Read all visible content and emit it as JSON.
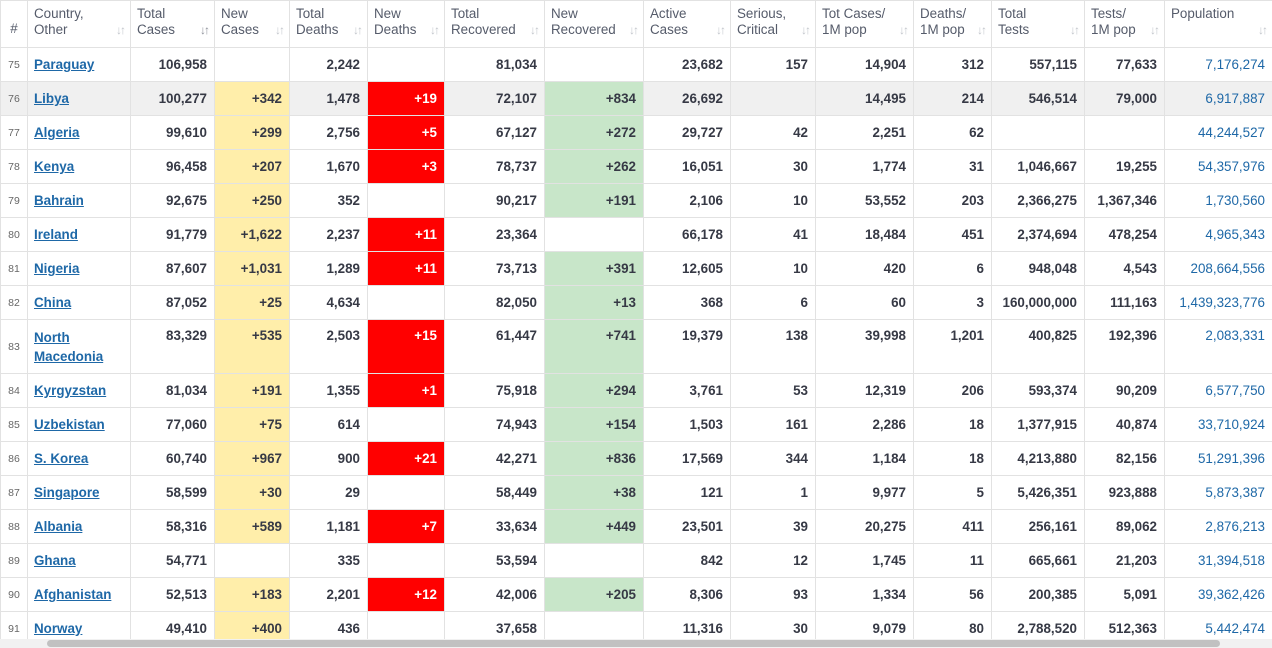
{
  "headers": [
    "#",
    "Country,\nOther",
    "Total\nCases",
    "New\nCases",
    "Total\nDeaths",
    "New\nDeaths",
    "Total\nRecovered",
    "New\nRecovered",
    "Active\nCases",
    "Serious,\nCritical",
    "Tot Cases/\n1M pop",
    "Deaths/\n1M pop",
    "Total\nTests",
    "Tests/\n1M pop",
    "Population"
  ],
  "rows": [
    {
      "n": "75",
      "country": "Paraguay",
      "total_cases": "106,958",
      "new_cases": "",
      "total_deaths": "2,242",
      "new_deaths": "",
      "total_recovered": "81,034",
      "new_recovered": "",
      "active": "23,682",
      "critical": "157",
      "cases_1m": "14,904",
      "deaths_1m": "312",
      "tests": "557,115",
      "tests_1m": "77,633",
      "population": "7,176,274"
    },
    {
      "n": "76",
      "country": "Libya",
      "total_cases": "100,277",
      "new_cases": "+342",
      "total_deaths": "1,478",
      "new_deaths": "+19",
      "total_recovered": "72,107",
      "new_recovered": "+834",
      "active": "26,692",
      "critical": "",
      "cases_1m": "14,495",
      "deaths_1m": "214",
      "tests": "546,514",
      "tests_1m": "79,000",
      "population": "6,917,887"
    },
    {
      "n": "77",
      "country": "Algeria",
      "total_cases": "99,610",
      "new_cases": "+299",
      "total_deaths": "2,756",
      "new_deaths": "+5",
      "total_recovered": "67,127",
      "new_recovered": "+272",
      "active": "29,727",
      "critical": "42",
      "cases_1m": "2,251",
      "deaths_1m": "62",
      "tests": "",
      "tests_1m": "",
      "population": "44,244,527"
    },
    {
      "n": "78",
      "country": "Kenya",
      "total_cases": "96,458",
      "new_cases": "+207",
      "total_deaths": "1,670",
      "new_deaths": "+3",
      "total_recovered": "78,737",
      "new_recovered": "+262",
      "active": "16,051",
      "critical": "30",
      "cases_1m": "1,774",
      "deaths_1m": "31",
      "tests": "1,046,667",
      "tests_1m": "19,255",
      "population": "54,357,976"
    },
    {
      "n": "79",
      "country": "Bahrain",
      "total_cases": "92,675",
      "new_cases": "+250",
      "total_deaths": "352",
      "new_deaths": "",
      "total_recovered": "90,217",
      "new_recovered": "+191",
      "active": "2,106",
      "critical": "10",
      "cases_1m": "53,552",
      "deaths_1m": "203",
      "tests": "2,366,275",
      "tests_1m": "1,367,346",
      "population": "1,730,560"
    },
    {
      "n": "80",
      "country": "Ireland",
      "total_cases": "91,779",
      "new_cases": "+1,622",
      "total_deaths": "2,237",
      "new_deaths": "+11",
      "total_recovered": "23,364",
      "new_recovered": "",
      "active": "66,178",
      "critical": "41",
      "cases_1m": "18,484",
      "deaths_1m": "451",
      "tests": "2,374,694",
      "tests_1m": "478,254",
      "population": "4,965,343"
    },
    {
      "n": "81",
      "country": "Nigeria",
      "total_cases": "87,607",
      "new_cases": "+1,031",
      "total_deaths": "1,289",
      "new_deaths": "+11",
      "total_recovered": "73,713",
      "new_recovered": "+391",
      "active": "12,605",
      "critical": "10",
      "cases_1m": "420",
      "deaths_1m": "6",
      "tests": "948,048",
      "tests_1m": "4,543",
      "population": "208,664,556"
    },
    {
      "n": "82",
      "country": "China",
      "total_cases": "87,052",
      "new_cases": "+25",
      "total_deaths": "4,634",
      "new_deaths": "",
      "total_recovered": "82,050",
      "new_recovered": "+13",
      "active": "368",
      "critical": "6",
      "cases_1m": "60",
      "deaths_1m": "3",
      "tests": "160,000,000",
      "tests_1m": "111,163",
      "population": "1,439,323,776"
    },
    {
      "n": "83",
      "country": "North Macedonia",
      "total_cases": "83,329",
      "new_cases": "+535",
      "total_deaths": "2,503",
      "new_deaths": "+15",
      "total_recovered": "61,447",
      "new_recovered": "+741",
      "active": "19,379",
      "critical": "138",
      "cases_1m": "39,998",
      "deaths_1m": "1,201",
      "tests": "400,825",
      "tests_1m": "192,396",
      "population": "2,083,331"
    },
    {
      "n": "84",
      "country": "Kyrgyzstan",
      "total_cases": "81,034",
      "new_cases": "+191",
      "total_deaths": "1,355",
      "new_deaths": "+1",
      "total_recovered": "75,918",
      "new_recovered": "+294",
      "active": "3,761",
      "critical": "53",
      "cases_1m": "12,319",
      "deaths_1m": "206",
      "tests": "593,374",
      "tests_1m": "90,209",
      "population": "6,577,750"
    },
    {
      "n": "85",
      "country": "Uzbekistan",
      "total_cases": "77,060",
      "new_cases": "+75",
      "total_deaths": "614",
      "new_deaths": "",
      "total_recovered": "74,943",
      "new_recovered": "+154",
      "active": "1,503",
      "critical": "161",
      "cases_1m": "2,286",
      "deaths_1m": "18",
      "tests": "1,377,915",
      "tests_1m": "40,874",
      "population": "33,710,924"
    },
    {
      "n": "86",
      "country": "S. Korea",
      "total_cases": "60,740",
      "new_cases": "+967",
      "total_deaths": "900",
      "new_deaths": "+21",
      "total_recovered": "42,271",
      "new_recovered": "+836",
      "active": "17,569",
      "critical": "344",
      "cases_1m": "1,184",
      "deaths_1m": "18",
      "tests": "4,213,880",
      "tests_1m": "82,156",
      "population": "51,291,396"
    },
    {
      "n": "87",
      "country": "Singapore",
      "total_cases": "58,599",
      "new_cases": "+30",
      "total_deaths": "29",
      "new_deaths": "",
      "total_recovered": "58,449",
      "new_recovered": "+38",
      "active": "121",
      "critical": "1",
      "cases_1m": "9,977",
      "deaths_1m": "5",
      "tests": "5,426,351",
      "tests_1m": "923,888",
      "population": "5,873,387"
    },
    {
      "n": "88",
      "country": "Albania",
      "total_cases": "58,316",
      "new_cases": "+589",
      "total_deaths": "1,181",
      "new_deaths": "+7",
      "total_recovered": "33,634",
      "new_recovered": "+449",
      "active": "23,501",
      "critical": "39",
      "cases_1m": "20,275",
      "deaths_1m": "411",
      "tests": "256,161",
      "tests_1m": "89,062",
      "population": "2,876,213"
    },
    {
      "n": "89",
      "country": "Ghana",
      "total_cases": "54,771",
      "new_cases": "",
      "total_deaths": "335",
      "new_deaths": "",
      "total_recovered": "53,594",
      "new_recovered": "",
      "active": "842",
      "critical": "12",
      "cases_1m": "1,745",
      "deaths_1m": "11",
      "tests": "665,661",
      "tests_1m": "21,203",
      "population": "31,394,518"
    },
    {
      "n": "90",
      "country": "Afghanistan",
      "total_cases": "52,513",
      "new_cases": "+183",
      "total_deaths": "2,201",
      "new_deaths": "+12",
      "total_recovered": "42,006",
      "new_recovered": "+205",
      "active": "8,306",
      "critical": "93",
      "cases_1m": "1,334",
      "deaths_1m": "56",
      "tests": "200,385",
      "tests_1m": "5,091",
      "population": "39,362,426"
    },
    {
      "n": "91",
      "country": "Norway",
      "total_cases": "49,410",
      "new_cases": "+400",
      "total_deaths": "436",
      "new_deaths": "",
      "total_recovered": "37,658",
      "new_recovered": "",
      "active": "11,316",
      "critical": "30",
      "cases_1m": "9,079",
      "deaths_1m": "80",
      "tests": "2,788,520",
      "tests_1m": "512,363",
      "population": "5,442,474"
    }
  ],
  "colors": {
    "new_cases_bg": "#ffeeaa",
    "new_deaths_bg": "#ff0000",
    "new_recovered_bg": "#c8e6c9",
    "link": "#1e68a7"
  },
  "icons": {
    "sort": "sort-arrows-icon"
  }
}
